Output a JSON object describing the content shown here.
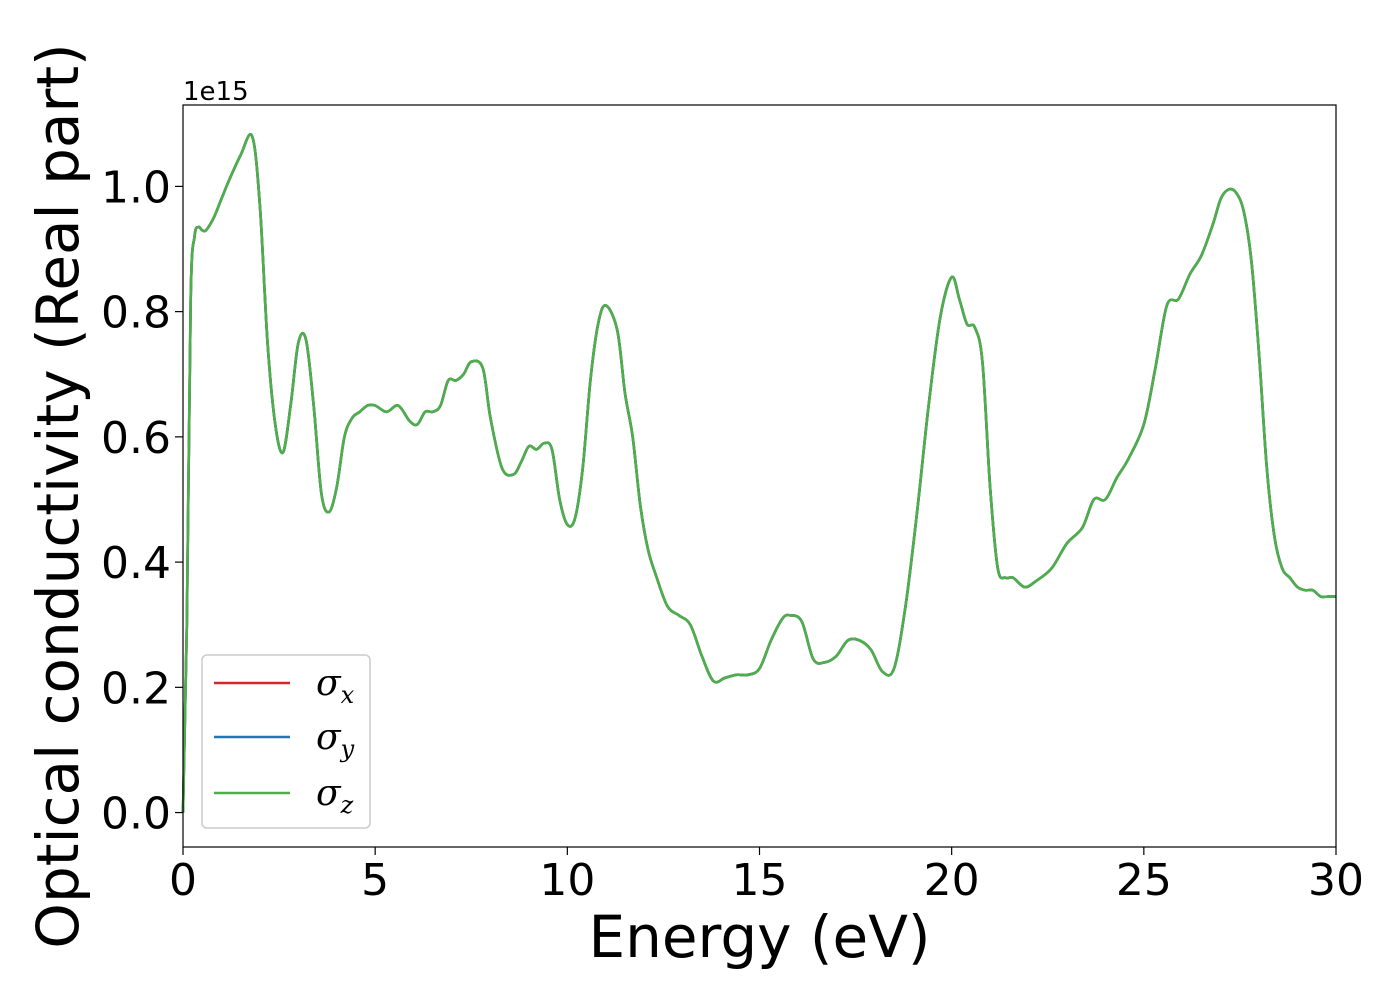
{
  "chart_data": {
    "type": "line",
    "xlabel": "Energy (eV)",
    "ylabel": "Optical conductivity (Real part)",
    "y_offset_text": "1e15",
    "y_scale_factor": 1000000000000000.0,
    "xlim": [
      0,
      30
    ],
    "ylim": [
      -0.055,
      1.13
    ],
    "xticks": [
      0,
      5,
      10,
      15,
      20,
      25,
      30
    ],
    "xtick_labels": [
      "0",
      "5",
      "10",
      "15",
      "20",
      "25",
      "30"
    ],
    "yticks": [
      0.0,
      0.2,
      0.4,
      0.6,
      0.8,
      1.0
    ],
    "ytick_labels": [
      "0.0",
      "0.2",
      "0.4",
      "0.6",
      "0.8",
      "1.0"
    ],
    "grid": false,
    "legend_position": "lower-left",
    "x": [
      0,
      0.1,
      0.2,
      0.3,
      0.4,
      0.5,
      0.6,
      0.8,
      1.0,
      1.2,
      1.5,
      1.8,
      2.0,
      2.2,
      2.4,
      2.6,
      2.8,
      3.0,
      3.2,
      3.4,
      3.6,
      3.8,
      4.0,
      4.2,
      4.4,
      4.6,
      4.8,
      5.0,
      5.3,
      5.6,
      5.9,
      6.1,
      6.3,
      6.5,
      6.7,
      6.9,
      7.1,
      7.3,
      7.5,
      7.8,
      8.0,
      8.3,
      8.6,
      8.8,
      9.0,
      9.2,
      9.4,
      9.6,
      9.8,
      10.0,
      10.2,
      10.4,
      10.6,
      10.8,
      11.0,
      11.3,
      11.5,
      11.7,
      11.9,
      12.1,
      12.3,
      12.6,
      12.9,
      13.2,
      13.5,
      13.8,
      14.1,
      14.4,
      14.7,
      15.0,
      15.3,
      15.6,
      15.8,
      16.1,
      16.4,
      16.7,
      17.0,
      17.3,
      17.6,
      17.9,
      18.2,
      18.5,
      18.8,
      19.1,
      19.4,
      19.7,
      20.0,
      20.2,
      20.4,
      20.6,
      20.8,
      21.0,
      21.2,
      21.4,
      21.6,
      21.9,
      22.2,
      22.6,
      23.0,
      23.4,
      23.7,
      24.0,
      24.3,
      24.6,
      25.0,
      25.3,
      25.6,
      25.9,
      26.2,
      26.5,
      26.8,
      27.0,
      27.2,
      27.4,
      27.6,
      27.8,
      28.0,
      28.2,
      28.4,
      28.6,
      28.8,
      29.0,
      29.2,
      29.4,
      29.6,
      29.8,
      30.0
    ],
    "series": [
      {
        "name": "σ_x",
        "color": "#d62728"
      },
      {
        "name": "σ_y",
        "color": "#1f77b4"
      },
      {
        "name": "σ_z",
        "color": "#4daf4a"
      }
    ],
    "shared_values": [
      0.0,
      0.3,
      0.82,
      0.92,
      0.935,
      0.93,
      0.93,
      0.95,
      0.98,
      1.01,
      1.05,
      1.08,
      0.97,
      0.75,
      0.62,
      0.575,
      0.65,
      0.75,
      0.755,
      0.65,
      0.51,
      0.48,
      0.52,
      0.6,
      0.63,
      0.64,
      0.65,
      0.65,
      0.64,
      0.65,
      0.625,
      0.62,
      0.64,
      0.64,
      0.65,
      0.69,
      0.69,
      0.7,
      0.72,
      0.71,
      0.63,
      0.55,
      0.54,
      0.56,
      0.585,
      0.58,
      0.59,
      0.58,
      0.5,
      0.46,
      0.47,
      0.55,
      0.69,
      0.78,
      0.81,
      0.77,
      0.67,
      0.6,
      0.49,
      0.42,
      0.38,
      0.33,
      0.315,
      0.3,
      0.25,
      0.21,
      0.215,
      0.22,
      0.22,
      0.23,
      0.275,
      0.31,
      0.315,
      0.305,
      0.245,
      0.24,
      0.25,
      0.275,
      0.275,
      0.26,
      0.225,
      0.23,
      0.33,
      0.48,
      0.65,
      0.79,
      0.855,
      0.82,
      0.78,
      0.775,
      0.72,
      0.52,
      0.39,
      0.375,
      0.375,
      0.36,
      0.37,
      0.39,
      0.43,
      0.455,
      0.5,
      0.5,
      0.535,
      0.565,
      0.62,
      0.71,
      0.81,
      0.82,
      0.86,
      0.89,
      0.94,
      0.98,
      0.995,
      0.99,
      0.96,
      0.88,
      0.73,
      0.55,
      0.44,
      0.39,
      0.375,
      0.36,
      0.355,
      0.355,
      0.345,
      0.345,
      0.345
    ]
  }
}
